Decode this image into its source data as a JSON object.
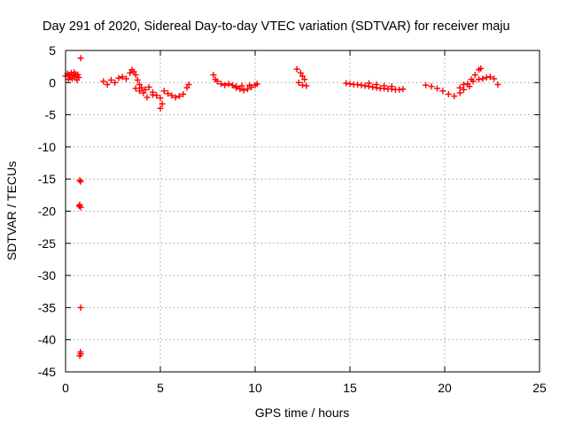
{
  "chart_data": {
    "type": "scatter",
    "title": "Day 291 of 2020, Sidereal Day-to-day VTEC variation (SDTVAR) for receiver maju",
    "xlabel": "GPS time / hours",
    "ylabel": "SDTVAR / TECUs",
    "xlim": [
      0,
      25
    ],
    "ylim": [
      -45,
      5
    ],
    "xticks": [
      "0",
      "5",
      "10",
      "15",
      "20",
      "25"
    ],
    "yticks": [
      "5",
      "0",
      "-5",
      "-10",
      "-15",
      "-20",
      "-25",
      "-30",
      "-35",
      "-40",
      "-45"
    ],
    "grid": true,
    "marker": "+",
    "color": "#ff0000",
    "series": [
      {
        "name": "SDTVAR",
        "points": [
          [
            0.0,
            1.0
          ],
          [
            0.1,
            1.4
          ],
          [
            0.15,
            0.5
          ],
          [
            0.2,
            1.2
          ],
          [
            0.25,
            0.8
          ],
          [
            0.3,
            1.5
          ],
          [
            0.35,
            0.6
          ],
          [
            0.4,
            1.1
          ],
          [
            0.45,
            1.6
          ],
          [
            0.5,
            0.9
          ],
          [
            0.55,
            1.3
          ],
          [
            0.6,
            0.4
          ],
          [
            0.65,
            1.2
          ],
          [
            0.7,
            0.8
          ],
          [
            0.8,
            3.8
          ],
          [
            0.75,
            -15.2
          ],
          [
            0.8,
            -15.4
          ],
          [
            0.75,
            -19.0
          ],
          [
            0.8,
            -19.4
          ],
          [
            0.72,
            -19.2
          ],
          [
            0.8,
            -35.0
          ],
          [
            0.78,
            -41.9
          ],
          [
            0.75,
            -42.5
          ],
          [
            0.8,
            -42.2
          ],
          [
            2.0,
            0.2
          ],
          [
            2.2,
            -0.3
          ],
          [
            2.4,
            0.4
          ],
          [
            2.6,
            0.0
          ],
          [
            2.8,
            0.7
          ],
          [
            3.0,
            0.9
          ],
          [
            3.2,
            0.6
          ],
          [
            3.4,
            1.5
          ],
          [
            3.5,
            2.0
          ],
          [
            3.6,
            1.7
          ],
          [
            3.7,
            1.2
          ],
          [
            3.8,
            0.4
          ],
          [
            3.9,
            -0.3
          ],
          [
            4.0,
            -0.8
          ],
          [
            4.2,
            -1.1
          ],
          [
            4.4,
            -0.7
          ],
          [
            4.6,
            -1.5
          ],
          [
            4.8,
            -2.0
          ],
          [
            5.0,
            -2.4
          ],
          [
            5.1,
            -3.3
          ],
          [
            5.0,
            -4.0
          ],
          [
            5.2,
            -1.3
          ],
          [
            5.4,
            -1.7
          ],
          [
            5.6,
            -2.0
          ],
          [
            5.8,
            -2.3
          ],
          [
            6.0,
            -2.1
          ],
          [
            6.2,
            -1.8
          ],
          [
            6.4,
            -0.8
          ],
          [
            6.5,
            -0.3
          ],
          [
            3.7,
            -0.9
          ],
          [
            3.9,
            -1.3
          ],
          [
            4.1,
            -1.6
          ],
          [
            4.3,
            -2.3
          ],
          [
            4.6,
            -1.9
          ],
          [
            7.8,
            1.2
          ],
          [
            7.9,
            0.5
          ],
          [
            8.0,
            0.2
          ],
          [
            8.2,
            -0.2
          ],
          [
            8.4,
            -0.4
          ],
          [
            8.6,
            -0.2
          ],
          [
            8.8,
            -0.4
          ],
          [
            9.0,
            -0.8
          ],
          [
            9.2,
            -1.0
          ],
          [
            9.4,
            -1.2
          ],
          [
            9.6,
            -1.0
          ],
          [
            9.8,
            -0.7
          ],
          [
            10.0,
            -0.4
          ],
          [
            10.1,
            -0.2
          ],
          [
            9.0,
            -0.6
          ],
          [
            9.3,
            -0.5
          ],
          [
            9.7,
            -0.4
          ],
          [
            12.2,
            2.1
          ],
          [
            12.4,
            1.5
          ],
          [
            12.5,
            1.0
          ],
          [
            12.6,
            0.5
          ],
          [
            12.3,
            0.0
          ],
          [
            12.5,
            -0.4
          ],
          [
            12.7,
            -0.5
          ],
          [
            14.8,
            -0.1
          ],
          [
            15.0,
            -0.2
          ],
          [
            15.2,
            -0.3
          ],
          [
            15.4,
            -0.3
          ],
          [
            15.6,
            -0.4
          ],
          [
            15.8,
            -0.5
          ],
          [
            16.0,
            -0.6
          ],
          [
            16.2,
            -0.7
          ],
          [
            16.4,
            -0.8
          ],
          [
            16.6,
            -0.9
          ],
          [
            16.8,
            -0.9
          ],
          [
            17.0,
            -1.0
          ],
          [
            17.2,
            -1.0
          ],
          [
            17.4,
            -1.1
          ],
          [
            17.6,
            -1.1
          ],
          [
            17.8,
            -1.0
          ],
          [
            16.0,
            -0.1
          ],
          [
            16.4,
            -0.3
          ],
          [
            16.8,
            -0.5
          ],
          [
            17.2,
            -0.6
          ],
          [
            19.0,
            -0.4
          ],
          [
            19.3,
            -0.6
          ],
          [
            19.6,
            -0.9
          ],
          [
            19.9,
            -1.3
          ],
          [
            20.2,
            -1.8
          ],
          [
            20.5,
            -2.1
          ],
          [
            20.8,
            -1.6
          ],
          [
            21.0,
            -1.1
          ],
          [
            21.2,
            -0.2
          ],
          [
            21.4,
            0.5
          ],
          [
            21.6,
            1.2
          ],
          [
            21.8,
            2.0
          ],
          [
            21.9,
            2.2
          ],
          [
            20.8,
            -0.8
          ],
          [
            21.0,
            -0.3
          ],
          [
            21.3,
            -0.6
          ],
          [
            21.5,
            0.2
          ],
          [
            21.8,
            0.5
          ],
          [
            22.0,
            0.6
          ],
          [
            22.2,
            0.8
          ],
          [
            22.4,
            0.9
          ],
          [
            22.6,
            0.6
          ],
          [
            22.8,
            -0.3
          ]
        ]
      }
    ]
  }
}
